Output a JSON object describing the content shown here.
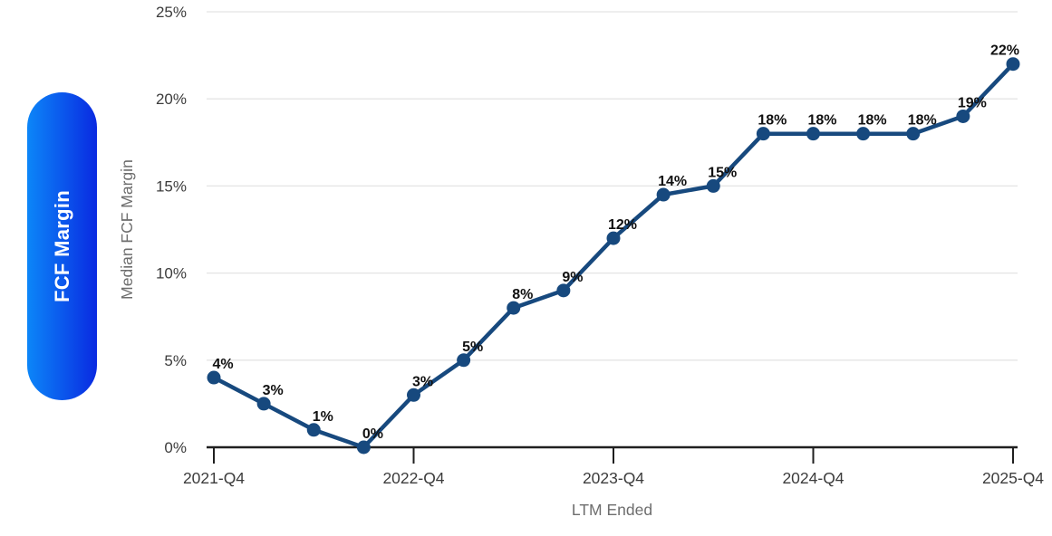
{
  "sidebar": {
    "tab_label": "FCF Margin"
  },
  "chart_data": {
    "type": "line",
    "title": "",
    "xlabel": "LTM Ended",
    "ylabel": "Median FCF Margin",
    "ylim": [
      0,
      25
    ],
    "grid": true,
    "legend_position": "none",
    "y_tick_labels": [
      "0%",
      "5%",
      "10%",
      "15%",
      "20%",
      "25%"
    ],
    "y_tick_values": [
      0,
      5,
      10,
      15,
      20,
      25
    ],
    "x_tick_labels": [
      "2021-Q4",
      "2022-Q4",
      "2023-Q4",
      "2024-Q4",
      "2025-Q4"
    ],
    "x_tick_point_indices": [
      0,
      4,
      8,
      12,
      16
    ],
    "points": [
      {
        "label": "4%",
        "value": 4
      },
      {
        "label": "3%",
        "value": 2.5
      },
      {
        "label": "1%",
        "value": 1
      },
      {
        "label": "0%",
        "value": 0
      },
      {
        "label": "3%",
        "value": 3
      },
      {
        "label": "5%",
        "value": 5
      },
      {
        "label": "8%",
        "value": 8
      },
      {
        "label": "9%",
        "value": 9
      },
      {
        "label": "12%",
        "value": 12
      },
      {
        "label": "14%",
        "value": 14.5
      },
      {
        "label": "15%",
        "value": 15
      },
      {
        "label": "18%",
        "value": 18
      },
      {
        "label": "18%",
        "value": 18
      },
      {
        "label": "18%",
        "value": 18
      },
      {
        "label": "18%",
        "value": 18
      },
      {
        "label": "19%",
        "value": 19
      },
      {
        "label": "22%",
        "value": 22
      }
    ],
    "colors": {
      "line": "#17497E",
      "marker": "#17497E",
      "data_label": "#111111",
      "grid": "#E4E4E4",
      "axis": "#1F1F1F",
      "tick_label": "#3C3C3C",
      "axis_title": "#6E6E6E",
      "background": "#FFFFFF",
      "pill_gradient_start": "#0C86F8",
      "pill_gradient_end": "#0A2AE1",
      "pill_text": "#FFFFFF"
    }
  }
}
